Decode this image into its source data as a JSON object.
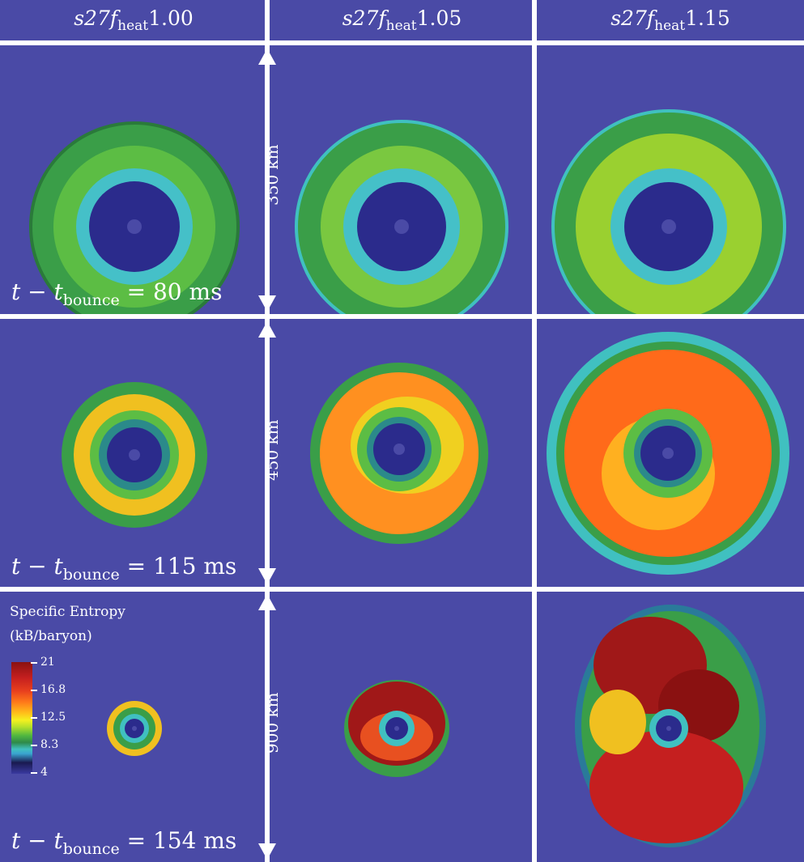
{
  "columns": [
    {
      "base": "s27f",
      "sub": "heat",
      "value": "1.00"
    },
    {
      "base": "s27f",
      "sub": "heat",
      "value": "1.05"
    },
    {
      "base": "s27f",
      "sub": "heat",
      "value": "1.15"
    }
  ],
  "rows": [
    {
      "time_prefix": "t − t",
      "time_sub": "bounce",
      "time_value": " = 80 ms",
      "scale": "350 km"
    },
    {
      "time_prefix": "t − t",
      "time_sub": "bounce",
      "time_value": " = 115 ms",
      "scale": "450 km"
    },
    {
      "time_prefix": "t − t",
      "time_sub": "bounce",
      "time_value": " = 154 ms",
      "scale": "900 km"
    }
  ],
  "legend": {
    "title": "Specific Entropy",
    "unit": "(kB/baryon)",
    "ticks": [
      "21",
      "16.8",
      "12.5",
      "8.3",
      "4"
    ]
  },
  "colors": {
    "background": "#4a4aa6",
    "divider": "#ffffff",
    "core": "#2b2b8c",
    "green": "#3aa54a",
    "cyan": "#40c0c0",
    "yellow": "#e8e020",
    "orange": "#ff7a1a",
    "red": "#c51f1f"
  }
}
